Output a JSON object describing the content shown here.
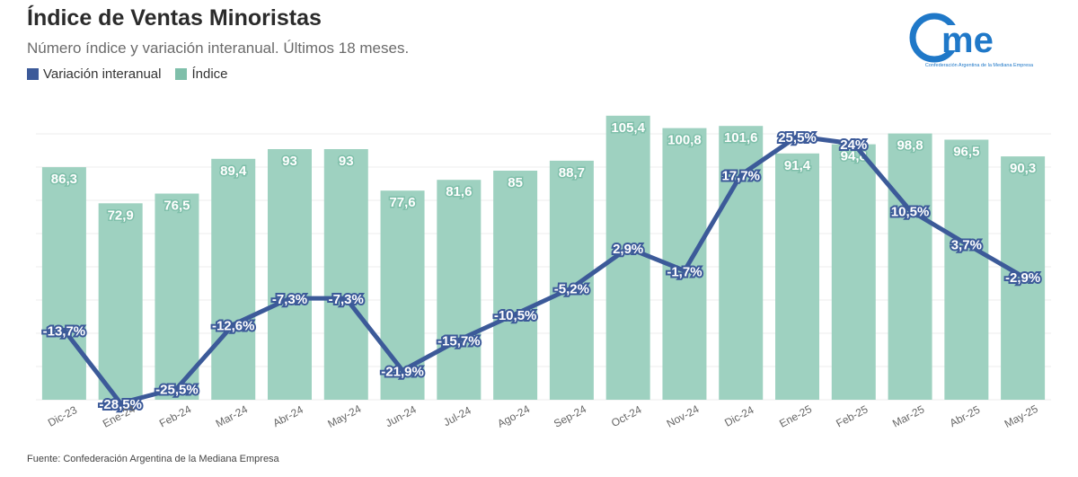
{
  "header": {
    "title": "Índice de Ventas Minoristas",
    "subtitle": "Número índice y variación interanual. Últimos 18 meses."
  },
  "logo": {
    "text": "came",
    "tagline": "Confederación Argentina de la Mediana Empresa"
  },
  "legend": [
    {
      "label": "Variación interanual",
      "color": "#3c5a99"
    },
    {
      "label": "Índice",
      "color": "#7fbfaa"
    }
  ],
  "source": "Fuente: Confederación Argentina de la Mediana Empresa",
  "colors": {
    "bar": "#9ed1c0",
    "line": "#3c5a99",
    "bar_label_bg": "#7fbfaa",
    "grid": "#eeeeee",
    "tick": "#666666"
  },
  "chart_data": {
    "type": "bar",
    "categories": [
      "Dic-23",
      "Ene-24",
      "Feb-24",
      "Mar-24",
      "Abr-24",
      "May-24",
      "Jun-24",
      "Jul-24",
      "Ago-24",
      "Sep-24",
      "Oct-24",
      "Nov-24",
      "Dic-24",
      "Ene-25",
      "Feb-25",
      "Mar-25",
      "Abr-25",
      "May-25"
    ],
    "series": [
      {
        "name": "Índice",
        "type": "bar",
        "values": [
          86.3,
          72.9,
          76.5,
          89.4,
          93,
          93,
          77.6,
          81.6,
          85,
          88.7,
          105.4,
          100.8,
          101.6,
          91.4,
          94.8,
          98.8,
          96.5,
          90.3
        ],
        "labels": [
          "86,3",
          "72,9",
          "76,5",
          "89,4",
          "93",
          "93",
          "77,6",
          "81,6",
          "85",
          "88,7",
          "105,4",
          "100,8",
          "101,6",
          "91,4",
          "94,8",
          "98,8",
          "96,5",
          "90,3"
        ]
      },
      {
        "name": "Variación interanual",
        "type": "line",
        "values": [
          -13.7,
          -28.5,
          -25.5,
          -12.6,
          -7.3,
          -7.3,
          -21.9,
          -15.7,
          -10.5,
          -5.2,
          2.9,
          -1.7,
          17.7,
          25.5,
          24,
          10.5,
          3.7,
          -2.9
        ],
        "labels": [
          "-13,7%",
          "-28,5%",
          "-25,5%",
          "-12,6%",
          "-7,3%",
          "-7,3%",
          "-21,9%",
          "-15,7%",
          "-10,5%",
          "-5,2%",
          "2,9%",
          "-1,7%",
          "17,7%",
          "25,5%",
          "24%",
          "10,5%",
          "3,7%",
          "-2,9%"
        ]
      }
    ],
    "grid": true,
    "legend_position": "top-left"
  }
}
